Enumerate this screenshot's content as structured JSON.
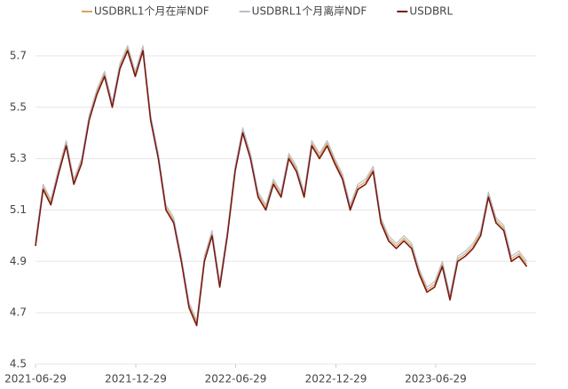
{
  "chart_data": {
    "type": "line",
    "x": [
      "2021-06-29",
      "2021-07-13",
      "2021-07-27",
      "2021-08-10",
      "2021-08-24",
      "2021-09-07",
      "2021-09-21",
      "2021-10-05",
      "2021-10-19",
      "2021-11-02",
      "2021-11-16",
      "2021-11-30",
      "2021-12-14",
      "2021-12-28",
      "2022-01-11",
      "2022-01-25",
      "2022-02-08",
      "2022-02-22",
      "2022-03-08",
      "2022-03-22",
      "2022-04-05",
      "2022-04-19",
      "2022-05-03",
      "2022-05-17",
      "2022-05-31",
      "2022-06-14",
      "2022-06-28",
      "2022-07-12",
      "2022-07-26",
      "2022-08-09",
      "2022-08-23",
      "2022-09-06",
      "2022-09-20",
      "2022-10-04",
      "2022-10-18",
      "2022-11-01",
      "2022-11-15",
      "2022-11-29",
      "2022-12-13",
      "2022-12-27",
      "2023-01-10",
      "2023-01-24",
      "2023-02-07",
      "2023-02-21",
      "2023-03-07",
      "2023-03-21",
      "2023-04-04",
      "2023-04-18",
      "2023-05-02",
      "2023-05-16",
      "2023-05-30",
      "2023-06-13",
      "2023-06-27",
      "2023-07-11",
      "2023-07-25",
      "2023-08-08",
      "2023-08-22",
      "2023-09-05",
      "2023-09-19",
      "2023-10-03",
      "2023-10-17",
      "2023-10-31",
      "2023-11-14",
      "2023-11-28",
      "2023-12-12"
    ],
    "series": [
      {
        "name": "USDBRL1个月在岸NDF",
        "color": "#d9a556",
        "values": [
          4.97,
          5.19,
          5.13,
          5.25,
          5.36,
          5.21,
          5.29,
          5.46,
          5.56,
          5.63,
          5.51,
          5.66,
          5.73,
          5.63,
          5.73,
          5.46,
          5.31,
          5.11,
          5.06,
          4.91,
          4.73,
          4.66,
          4.91,
          5.01,
          4.81,
          5.01,
          5.26,
          5.41,
          5.31,
          5.16,
          5.11,
          5.21,
          5.16,
          5.31,
          5.26,
          5.16,
          5.36,
          5.31,
          5.36,
          5.29,
          5.23,
          5.11,
          5.19,
          5.21,
          5.26,
          5.06,
          4.99,
          4.96,
          4.99,
          4.96,
          4.86,
          4.79,
          4.81,
          4.89,
          4.76,
          4.91,
          4.93,
          4.96,
          5.01,
          5.16,
          5.06,
          5.03,
          4.91,
          4.93,
          4.89
        ]
      },
      {
        "name": "USDBRL1个月离岸NDF",
        "color": "#b9bdcc",
        "values": [
          4.98,
          5.2,
          5.14,
          5.26,
          5.37,
          5.22,
          5.3,
          5.47,
          5.57,
          5.64,
          5.52,
          5.67,
          5.74,
          5.64,
          5.74,
          5.47,
          5.32,
          5.12,
          5.07,
          4.92,
          4.74,
          4.67,
          4.92,
          5.02,
          4.82,
          5.02,
          5.27,
          5.42,
          5.32,
          5.17,
          5.12,
          5.22,
          5.17,
          5.32,
          5.27,
          5.17,
          5.37,
          5.32,
          5.37,
          5.3,
          5.24,
          5.12,
          5.2,
          5.22,
          5.27,
          5.07,
          5.0,
          4.97,
          5.0,
          4.97,
          4.87,
          4.8,
          4.82,
          4.9,
          4.77,
          4.92,
          4.94,
          4.97,
          5.02,
          5.17,
          5.07,
          5.04,
          4.92,
          4.94,
          4.9
        ]
      },
      {
        "name": "USDBRL",
        "color": "#7a1a10",
        "values": [
          4.96,
          5.18,
          5.12,
          5.24,
          5.35,
          5.2,
          5.28,
          5.45,
          5.55,
          5.62,
          5.5,
          5.65,
          5.72,
          5.62,
          5.72,
          5.45,
          5.3,
          5.1,
          5.05,
          4.9,
          4.72,
          4.65,
          4.9,
          5.0,
          4.8,
          5.0,
          5.25,
          5.4,
          5.3,
          5.15,
          5.1,
          5.2,
          5.15,
          5.3,
          5.25,
          5.15,
          5.35,
          5.3,
          5.35,
          5.28,
          5.22,
          5.1,
          5.18,
          5.2,
          5.25,
          5.05,
          4.98,
          4.95,
          4.98,
          4.95,
          4.85,
          4.78,
          4.8,
          4.88,
          4.75,
          4.9,
          4.92,
          4.95,
          5.0,
          5.15,
          5.05,
          5.02,
          4.9,
          4.92,
          4.88
        ]
      }
    ],
    "xlim": [
      "2021-06-29",
      "2023-12-29"
    ],
    "xticks": [
      "2021-06-29",
      "2021-12-29",
      "2022-06-29",
      "2022-12-29",
      "2023-06-29"
    ],
    "ylim": [
      4.5,
      5.8
    ],
    "yticks": [
      4.5,
      4.7,
      4.9,
      5.1,
      5.3,
      5.5,
      5.7
    ],
    "grid": true,
    "legend": "top"
  }
}
